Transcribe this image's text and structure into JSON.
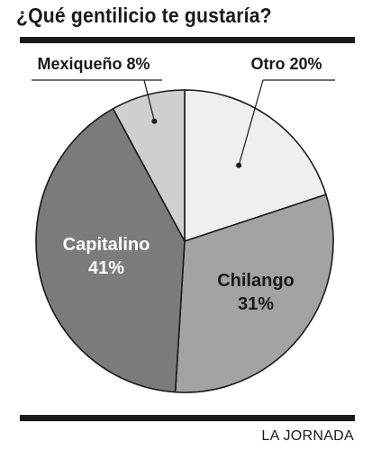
{
  "chart_data": {
    "type": "pie",
    "title": "¿Qué gentilicio te gustaría?",
    "categories": [
      "Otro",
      "Chilango",
      "Capitalino",
      "Mexiqueño"
    ],
    "values": [
      20,
      31,
      41,
      8
    ],
    "labels": [
      "Otro 20%",
      "Chilango 31%",
      "Capitalino 41%",
      "Mexiqueño 8%"
    ],
    "colors": [
      "#efefef",
      "#a3a3a3",
      "#7b7b7b",
      "#cfcfcf"
    ],
    "label_colors": [
      "#1a1a1a",
      "#1a1a1a",
      "#ffffff",
      "#1a1a1a"
    ],
    "source": "LA JORNADA"
  }
}
